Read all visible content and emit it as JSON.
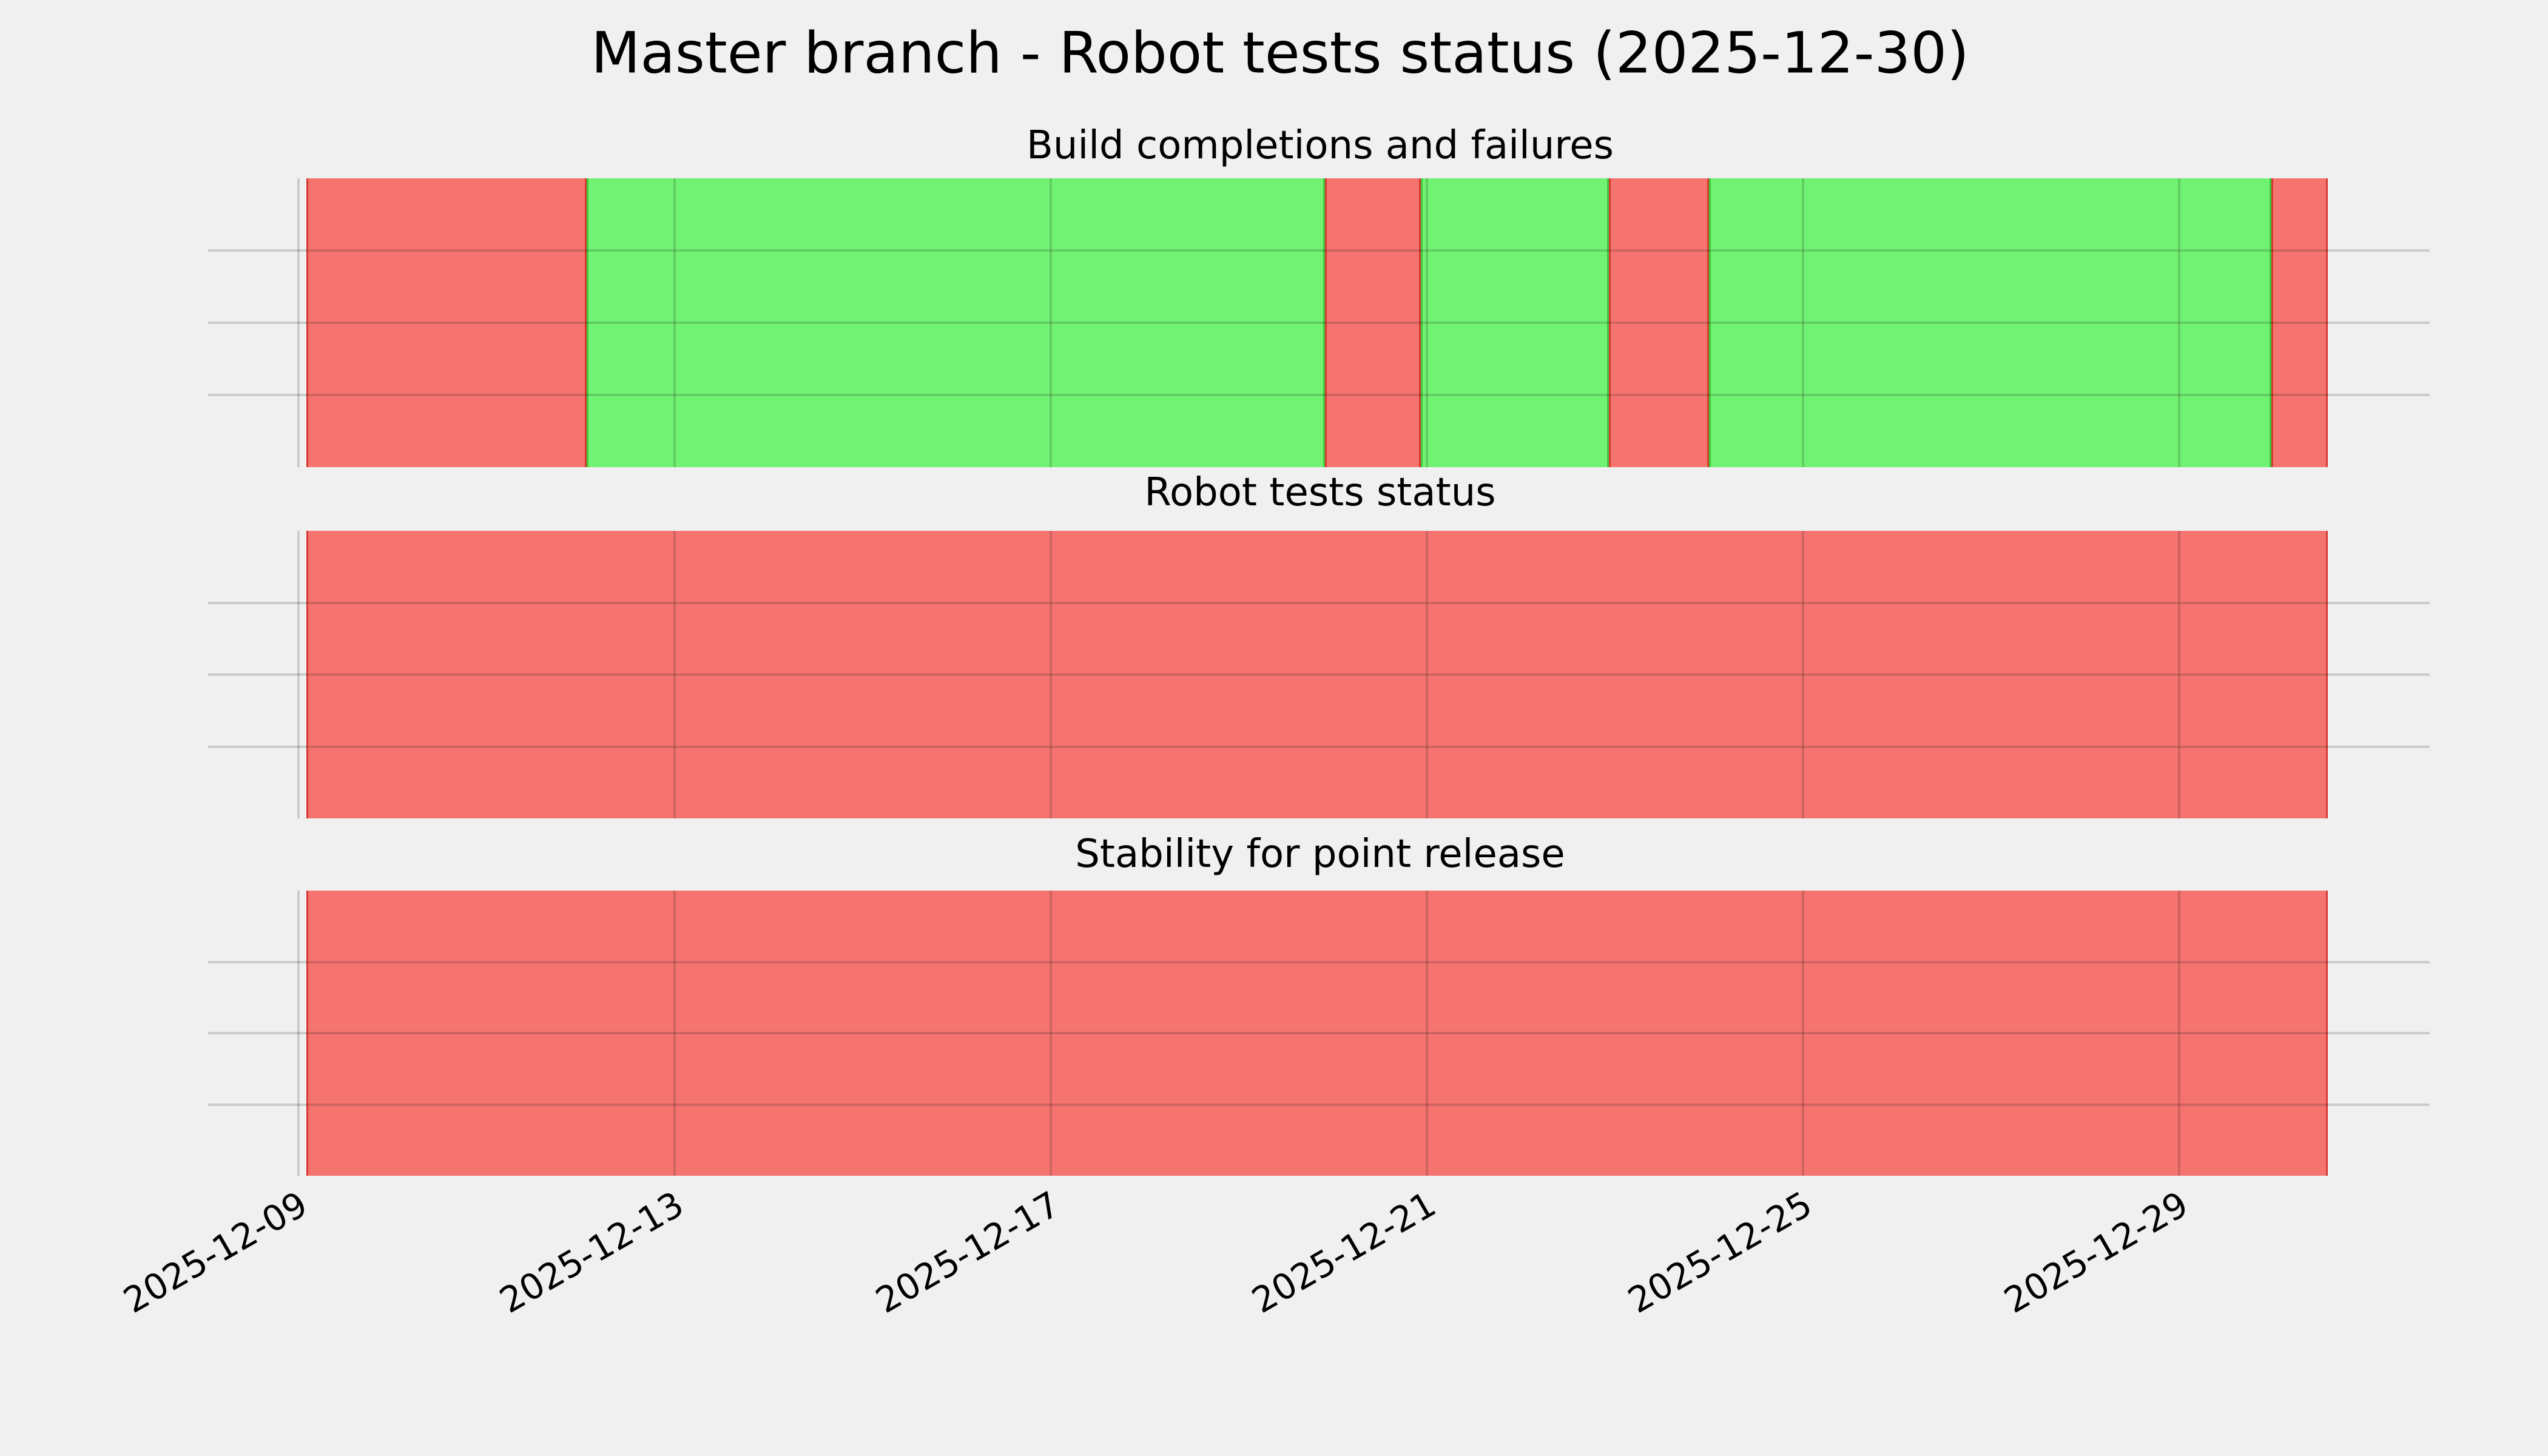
{
  "chart_data": {
    "type": "timeline",
    "title": "Master branch - Robot tests status (2025-12-30)",
    "background_color": "#F0F0F0",
    "grid_color": "#C8C8C8",
    "text_color": "#000000",
    "legend_position": "none",
    "grid": true,
    "status_colors": {
      "pass": "#72F272",
      "fail": "#F57470"
    },
    "status_edge_colors": {
      "pass": "#3CC93C",
      "fail": "#D63A32"
    },
    "x_axis": {
      "tick_labels": [
        "2025-12-09",
        "2025-12-13",
        "2025-12-17",
        "2025-12-21",
        "2025-12-25",
        "2025-12-29"
      ],
      "tick_rotation_deg": 30,
      "range_start": "2025-12-08T01:00",
      "range_end": "2025-12-31T16:00"
    },
    "subplots": [
      {
        "title": "Build completions and failures",
        "segments": [
          {
            "start": "2025-12-09T02:00",
            "end": "2025-12-12T01:30",
            "status": "fail"
          },
          {
            "start": "2025-12-12T01:30",
            "end": "2025-12-19T22:00",
            "status": "pass"
          },
          {
            "start": "2025-12-19T22:00",
            "end": "2025-12-20T22:30",
            "status": "fail"
          },
          {
            "start": "2025-12-20T22:30",
            "end": "2025-12-22T22:30",
            "status": "pass"
          },
          {
            "start": "2025-12-22T22:30",
            "end": "2025-12-24T00:00",
            "status": "fail"
          },
          {
            "start": "2025-12-24T00:00",
            "end": "2025-12-29T23:30",
            "status": "pass"
          },
          {
            "start": "2025-12-29T23:30",
            "end": "2025-12-30T14:00",
            "status": "fail"
          }
        ]
      },
      {
        "title": "Robot tests status",
        "segments": [
          {
            "start": "2025-12-09T02:00",
            "end": "2025-12-30T14:00",
            "status": "fail"
          }
        ]
      },
      {
        "title": "Stability for point release",
        "segments": [
          {
            "start": "2025-12-09T02:00",
            "end": "2025-12-30T14:00",
            "status": "fail"
          }
        ]
      }
    ]
  }
}
